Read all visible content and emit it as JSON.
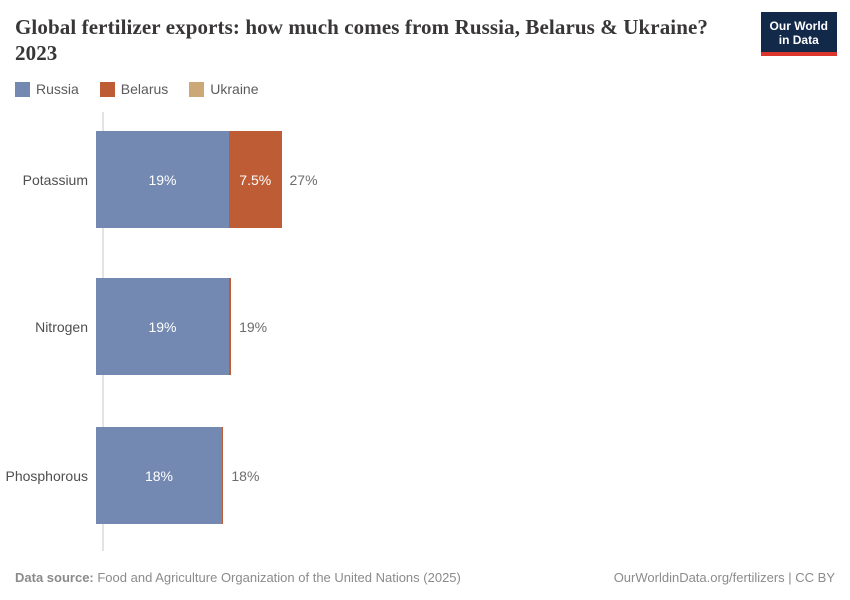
{
  "header": {
    "title": "Global fertilizer exports: how much comes from Russia, Belarus & Ukraine? 2023",
    "logo_line1": "Our World",
    "logo_line2": "in Data"
  },
  "legend": [
    {
      "label": "Russia",
      "color": "#7389b1"
    },
    {
      "label": "Belarus",
      "color": "#bd5c35"
    },
    {
      "label": "Ukraine",
      "color": "#cda877"
    }
  ],
  "chart_data": {
    "type": "bar",
    "orientation": "horizontal",
    "stacked": true,
    "title": "Global fertilizer exports: how much comes from Russia, Belarus & Ukraine? 2023",
    "xlabel": "",
    "ylabel": "",
    "unit": "%",
    "xlim": [
      0,
      30
    ],
    "grid": false,
    "legend_position": "top-left",
    "categories": [
      "Potassium",
      "Nitrogen",
      "Phosphorous"
    ],
    "series": [
      {
        "name": "Russia",
        "color": "#7389b1",
        "values": [
          19,
          19,
          18
        ],
        "labels": [
          "19%",
          "19%",
          "18%"
        ]
      },
      {
        "name": "Belarus",
        "color": "#bd5c35",
        "values": [
          7.5,
          0.3,
          0.2
        ],
        "labels": [
          "7.5%",
          "",
          ""
        ]
      },
      {
        "name": "Ukraine",
        "color": "#cda877",
        "values": [
          0,
          0,
          0
        ],
        "labels": [
          "",
          "",
          ""
        ]
      }
    ],
    "totals": [
      "27%",
      "19%",
      "18%"
    ]
  },
  "footer": {
    "source_label": "Data source:",
    "source_text": " Food and Agriculture Organization of the United Nations (2025)",
    "credit": "OurWorldinData.org/fertilizers | CC BY"
  }
}
